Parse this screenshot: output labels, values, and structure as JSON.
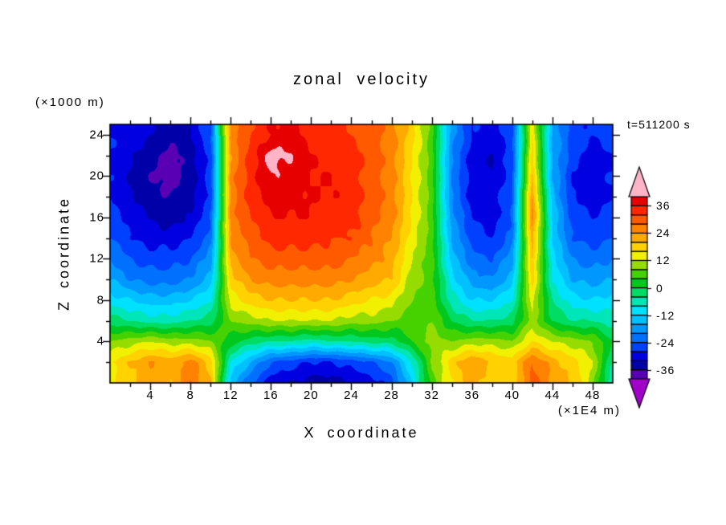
{
  "figure": {
    "title": "zonal velocity",
    "time_label": "t=511200 s",
    "y_units_label": "(×1000 m)",
    "x_units_label": "(×1E4 m)",
    "x_axis_title": "X coordinate",
    "y_axis_title": "Z coordinate"
  },
  "chart_data": {
    "type": "heatmap",
    "title": "zonal velocity",
    "annotation": "t=511200 s",
    "xlabel": "X coordinate",
    "ylabel": "Z coordinate",
    "x_units": "×1E4 m",
    "z_units": "×1000 m",
    "x_range": [
      0,
      50
    ],
    "z_range": [
      0,
      25
    ],
    "x_major_ticks": [
      4,
      8,
      12,
      16,
      20,
      24,
      28,
      32,
      36,
      40,
      44,
      48
    ],
    "z_major_ticks": [
      4,
      8,
      12,
      16,
      20,
      24
    ],
    "x_minor_step": 2,
    "z_minor_step": 2,
    "grid": false,
    "contour_interval": 4,
    "level_min": -40,
    "level_max": 40,
    "x": [
      0,
      2,
      4,
      6,
      8,
      10,
      12,
      14,
      16,
      18,
      20,
      22,
      24,
      26,
      28,
      30,
      32,
      34,
      36,
      38,
      40,
      42,
      44,
      46,
      48,
      50
    ],
    "z": [
      0,
      2,
      4,
      6,
      8,
      10,
      12,
      14,
      16,
      18,
      20,
      22,
      24
    ],
    "values": [
      [
        14,
        18,
        22,
        20,
        28,
        20,
        -14,
        -24,
        -30,
        -32,
        -34,
        -34,
        -32,
        -30,
        -26,
        -12,
        6,
        16,
        22,
        18,
        16,
        30,
        24,
        20,
        10,
        -8
      ],
      [
        16,
        20,
        24,
        22,
        26,
        18,
        -8,
        -16,
        -24,
        -26,
        -28,
        -28,
        -26,
        -24,
        -20,
        -8,
        8,
        18,
        24,
        20,
        18,
        28,
        22,
        18,
        12,
        -4
      ],
      [
        8,
        10,
        12,
        10,
        10,
        8,
        2,
        -2,
        -4,
        -4,
        -6,
        -4,
        -4,
        -2,
        -2,
        4,
        10,
        8,
        10,
        10,
        8,
        16,
        12,
        10,
        8,
        0
      ],
      [
        -2,
        -4,
        -6,
        -6,
        -4,
        -2,
        8,
        10,
        12,
        12,
        12,
        12,
        10,
        10,
        8,
        6,
        8,
        0,
        -4,
        -4,
        -2,
        10,
        0,
        -4,
        -4,
        -6
      ],
      [
        -10,
        -12,
        -14,
        -14,
        -12,
        -8,
        14,
        18,
        20,
        20,
        20,
        20,
        18,
        16,
        14,
        8,
        6,
        -6,
        -12,
        -12,
        -8,
        14,
        -4,
        -10,
        -12,
        -10
      ],
      [
        -16,
        -20,
        -22,
        -22,
        -20,
        -14,
        18,
        24,
        26,
        26,
        26,
        26,
        24,
        22,
        20,
        10,
        6,
        -10,
        -18,
        -20,
        -14,
        18,
        -8,
        -16,
        -18,
        -16
      ],
      [
        -20,
        -24,
        -26,
        -26,
        -24,
        -18,
        22,
        28,
        30,
        30,
        30,
        30,
        28,
        26,
        22,
        12,
        6,
        -14,
        -22,
        -24,
        -18,
        20,
        -10,
        -20,
        -22,
        -20
      ],
      [
        -24,
        -28,
        -30,
        -30,
        -28,
        -22,
        24,
        30,
        34,
        34,
        34,
        32,
        32,
        28,
        24,
        14,
        6,
        -16,
        -26,
        -28,
        -22,
        22,
        -12,
        -24,
        -26,
        -24
      ],
      [
        -26,
        -30,
        -32,
        -34,
        -32,
        -24,
        26,
        32,
        36,
        36,
        36,
        34,
        34,
        30,
        26,
        16,
        6,
        -18,
        -28,
        -30,
        -24,
        26,
        -12,
        -26,
        -28,
        -26
      ],
      [
        -28,
        -32,
        -34,
        -36,
        -34,
        -26,
        26,
        34,
        38,
        38,
        36,
        36,
        34,
        30,
        26,
        16,
        6,
        -20,
        -30,
        -30,
        -24,
        24,
        -14,
        -28,
        -30,
        -28
      ],
      [
        -28,
        -32,
        -36,
        -38,
        -34,
        -26,
        26,
        34,
        40,
        38,
        36,
        36,
        34,
        30,
        26,
        16,
        6,
        -20,
        -30,
        -32,
        -26,
        20,
        -16,
        -28,
        -30,
        -28
      ],
      [
        -28,
        -32,
        -34,
        -38,
        -34,
        -26,
        24,
        34,
        42,
        40,
        36,
        34,
        34,
        30,
        26,
        16,
        6,
        -20,
        -30,
        -32,
        -26,
        18,
        -16,
        -26,
        -30,
        -28
      ],
      [
        -28,
        -30,
        -32,
        -34,
        -32,
        -24,
        26,
        32,
        36,
        38,
        34,
        34,
        32,
        30,
        26,
        18,
        6,
        -18,
        -28,
        -30,
        -26,
        16,
        -16,
        -26,
        -28,
        -26
      ]
    ],
    "colorbar": {
      "position": "right",
      "tick_values": [
        36,
        24,
        12,
        0,
        -12,
        -24,
        -36
      ],
      "tick_labels": [
        "36",
        "24",
        "12",
        "0",
        "-12",
        "-24",
        "-36"
      ],
      "bin_colors": [
        "#5A00B4",
        "#0000A8",
        "#0000E0",
        "#0040FF",
        "#0070FF",
        "#0098FF",
        "#00C0FF",
        "#00E0FF",
        "#00E6B8",
        "#00DC64",
        "#00C81E",
        "#46D200",
        "#96DC00",
        "#F0F000",
        "#FFD200",
        "#FFAA00",
        "#FF8200",
        "#FF5A00",
        "#FF2800",
        "#E60000"
      ],
      "under_color": "#A000C8",
      "over_color": "#FFB4C8"
    },
    "frame_color": "#000000",
    "background_color": "#FFFFFF"
  }
}
